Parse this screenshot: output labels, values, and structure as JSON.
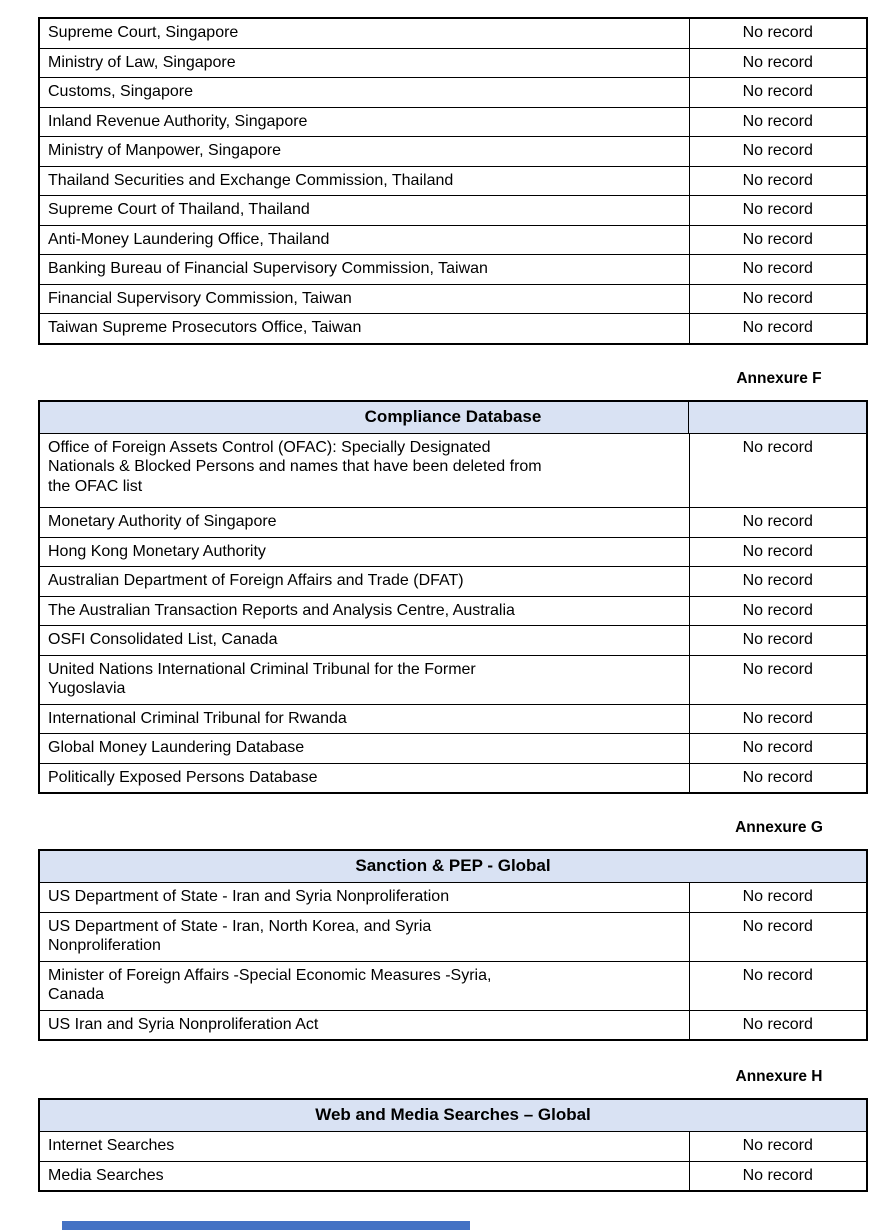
{
  "colors": {
    "page_background": "#ffffff",
    "table_header_background": "#d9e2f3",
    "table_border": "#000000",
    "text": "#000000",
    "bottom_bar": "#4472c4"
  },
  "tables": [
    {
      "rows": [
        {
          "source": "Supreme Court, Singapore",
          "result": "No record"
        },
        {
          "source": "Ministry of Law, Singapore",
          "result": "No record"
        },
        {
          "source": "Customs, Singapore",
          "result": "No record"
        },
        {
          "source": "Inland Revenue Authority, Singapore",
          "result": "No record"
        },
        {
          "source": "Ministry of Manpower, Singapore",
          "result": "No record"
        },
        {
          "source": "Thailand Securities and Exchange Commission, Thailand",
          "result": "No record"
        },
        {
          "source": "Supreme Court of Thailand, Thailand",
          "result": "No record"
        },
        {
          "source": "Anti-Money Laundering Office, Thailand",
          "result": "No record"
        },
        {
          "source": "Banking Bureau of Financial Supervisory Commission, Taiwan",
          "result": "No record"
        },
        {
          "source": "Financial Supervisory Commission, Taiwan",
          "result": "No record"
        },
        {
          "source": "Taiwan Supreme Prosecutors Office, Taiwan",
          "result": "No record"
        }
      ]
    },
    {
      "annexure": "Annexure F",
      "title": "Compliance Database",
      "rows": [
        {
          "source": "Office of Foreign Assets Control (OFAC): Specially Designated\nNationals & Blocked Persons and names that have been deleted from\nthe OFAC list",
          "result": "No record"
        },
        {
          "source": "Monetary Authority of Singapore",
          "result": "No record"
        },
        {
          "source": "Hong Kong Monetary Authority",
          "result": "No record"
        },
        {
          "source": "Australian Department of Foreign Affairs and Trade (DFAT)",
          "result": "No record"
        },
        {
          "source": "The Australian Transaction Reports and Analysis Centre, Australia",
          "result": "No record"
        },
        {
          "source": "OSFI Consolidated List, Canada",
          "result": "No record"
        },
        {
          "source": "United Nations International Criminal Tribunal for the Former\nYugoslavia",
          "result": "No record"
        },
        {
          "source": "International Criminal Tribunal for Rwanda",
          "result": "No record"
        },
        {
          "source": "Global Money Laundering Database",
          "result": "No record"
        },
        {
          "source": "Politically Exposed Persons Database",
          "result": "No record"
        }
      ]
    },
    {
      "annexure": "Annexure G",
      "title": "Sanction & PEP - Global",
      "rows": [
        {
          "source": "US Department of State - Iran and Syria Nonproliferation",
          "result": "No record"
        },
        {
          "source": "US Department of State - Iran, North Korea, and Syria\nNonproliferation",
          "result": "No record"
        },
        {
          "source": "Minister of Foreign Affairs -Special Economic Measures -Syria,\nCanada",
          "result": "No record"
        },
        {
          "source": "US Iran and Syria Nonproliferation Act",
          "result": "No record"
        }
      ]
    },
    {
      "annexure": "Annexure H",
      "title": "Web and Media Searches – Global",
      "rows": [
        {
          "source": "Internet Searches",
          "result": "No record"
        },
        {
          "source": "Media Searches",
          "result": "No record"
        }
      ]
    }
  ]
}
